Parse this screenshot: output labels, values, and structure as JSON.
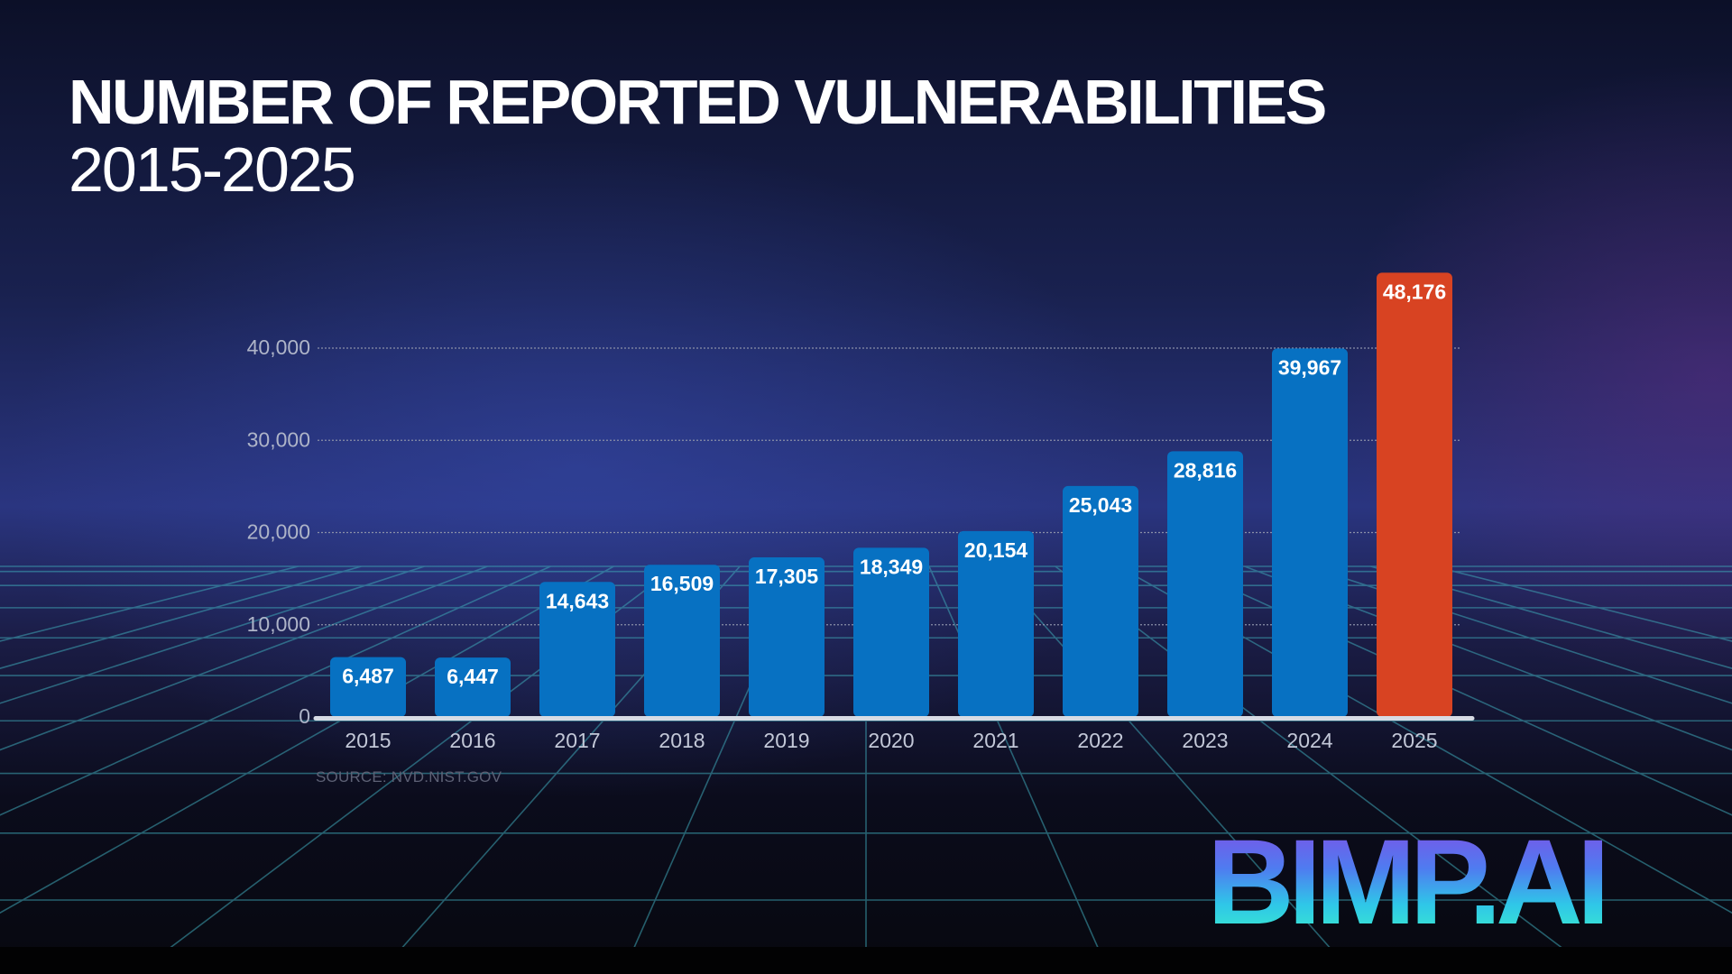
{
  "chart_data": {
    "type": "bar",
    "title": "NUMBER OF REPORTED VULNERABILITIES",
    "subtitle": "2015-2025",
    "categories": [
      "2015",
      "2016",
      "2017",
      "2018",
      "2019",
      "2020",
      "2021",
      "2022",
      "2023",
      "2024",
      "2025"
    ],
    "values": [
      6487,
      6447,
      14643,
      16509,
      17305,
      18349,
      20154,
      25043,
      28816,
      39967,
      48176
    ],
    "value_labels": [
      "6,487",
      "6,447",
      "14,643",
      "16,509",
      "17,305",
      "18,349",
      "20,154",
      "25,043",
      "28,816",
      "39,967",
      "48,176"
    ],
    "yticks": [
      0,
      10000,
      20000,
      30000,
      40000
    ],
    "ytick_labels": [
      "0",
      "10,000",
      "20,000",
      "30,000",
      "40,000"
    ],
    "ylim": [
      0,
      40000
    ],
    "grid": true,
    "xlabel": "",
    "ylabel": "",
    "highlight_index": 10,
    "colors": {
      "bar": "#0771c2",
      "highlight": "#d84322",
      "gridline": "#8a90a8",
      "baseline": "#d7dbe4"
    }
  },
  "source": "SOURCE: NVD.NIST.GOV",
  "brand": {
    "logo_text": "BIMP.AI"
  }
}
